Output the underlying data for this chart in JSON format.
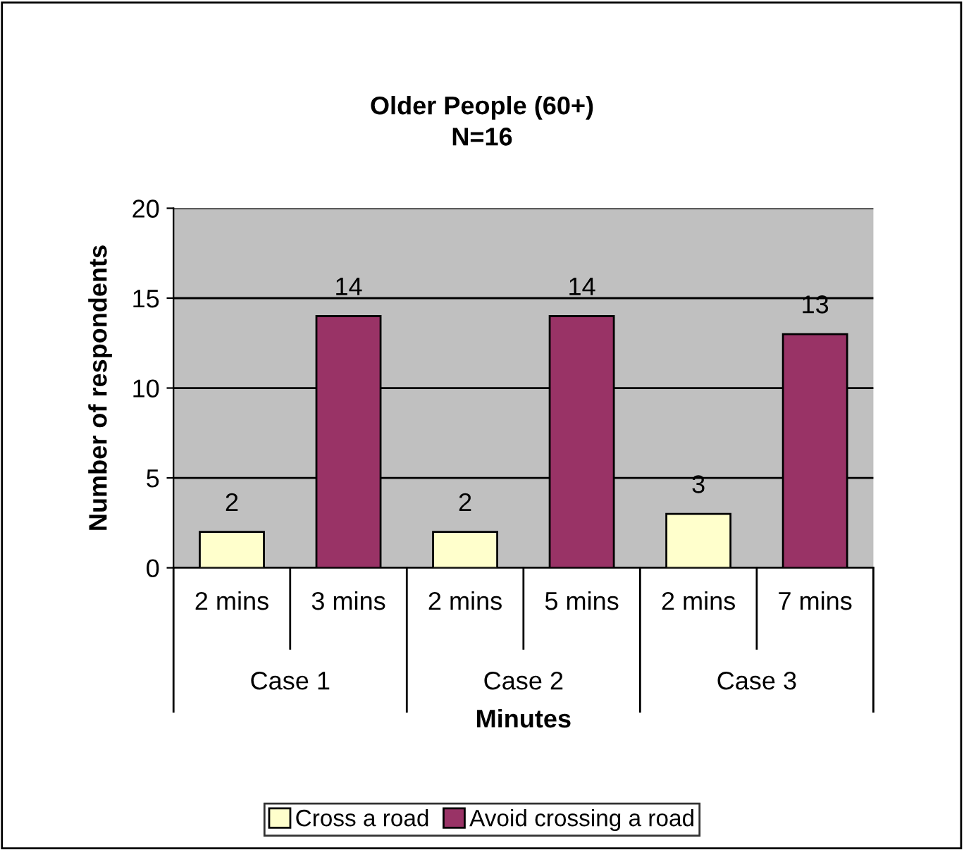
{
  "chart_data": {
    "type": "bar",
    "title": "Older People (60+)\nN=16",
    "xlabel": "Minutes",
    "ylabel": "Number of respondents",
    "categories": [
      "2 mins",
      "3 mins",
      "2 mins",
      "5 mins",
      "2 mins",
      "7 mins"
    ],
    "annotations": [
      "Case 1",
      "Case 2",
      "Case 3"
    ],
    "series": [
      {
        "name": "Cross a road",
        "color": "#ffffcc",
        "values": [
          2,
          null,
          2,
          null,
          3,
          null
        ]
      },
      {
        "name": "Avoid crossing a road",
        "color": "#993366",
        "values": [
          null,
          14,
          null,
          14,
          null,
          13
        ]
      }
    ],
    "ylim": [
      0,
      20
    ],
    "yticks": [
      0,
      5,
      10,
      15,
      20
    ],
    "grid": "y",
    "legend": "bottom",
    "data_labels": true
  }
}
